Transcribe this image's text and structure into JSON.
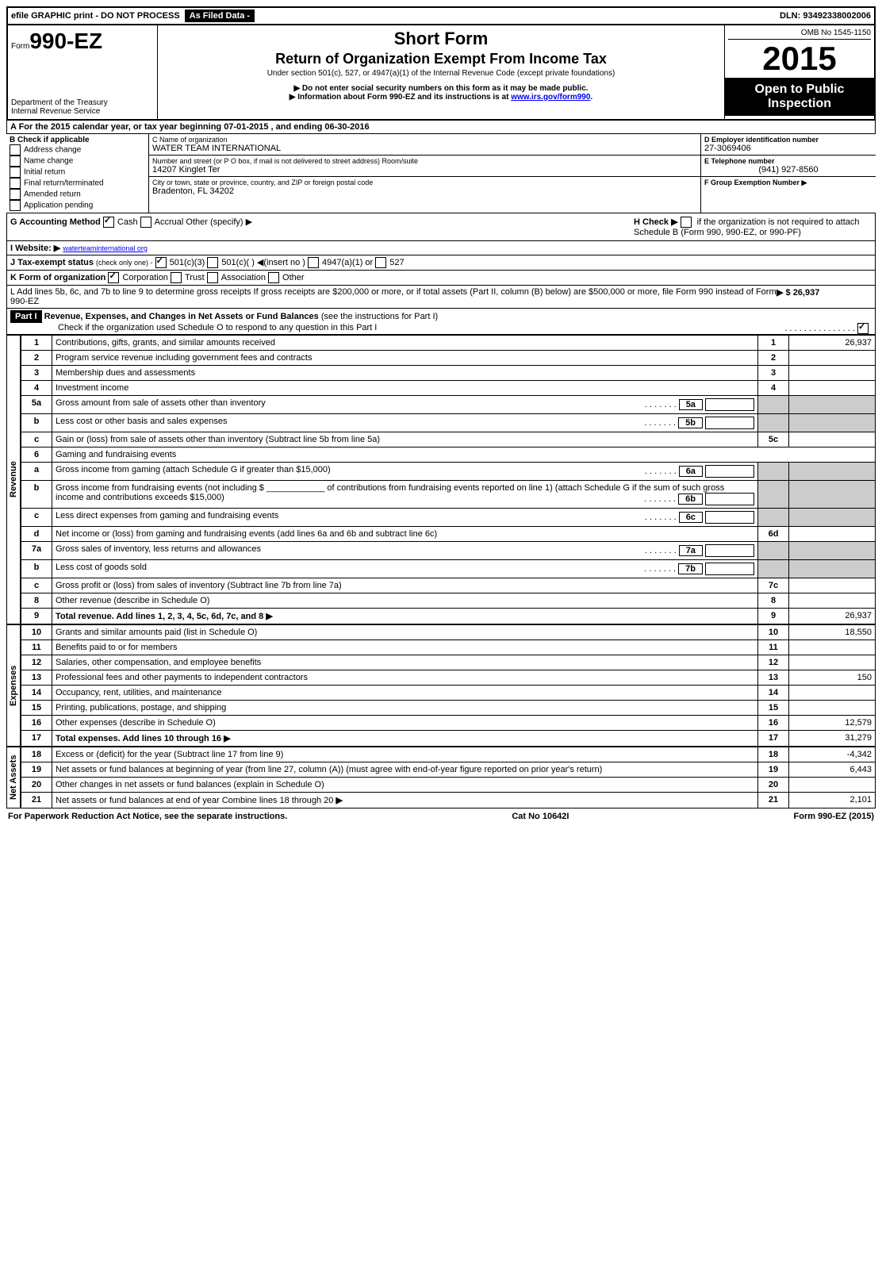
{
  "topbar": {
    "efile": "efile GRAPHIC print - DO NOT PROCESS",
    "asfiled": "As Filed Data -",
    "dln": "DLN: 93492338002006"
  },
  "header": {
    "form_prefix": "Form",
    "form_number": "990-EZ",
    "dept": "Department of the Treasury",
    "irs": "Internal Revenue Service",
    "short_form": "Short Form",
    "title": "Return of Organization Exempt From Income Tax",
    "subtitle": "Under section 501(c), 527, or 4947(a)(1) of the Internal Revenue Code (except private foundations)",
    "note1": "▶ Do not enter social security numbers on this form as it may be made public.",
    "note2_a": "▶ Information about Form 990-EZ and its instructions is at ",
    "note2_link": "www.irs.gov/form990",
    "omb": "OMB No 1545-1150",
    "year": "2015",
    "open_public1": "Open to Public",
    "open_public2": "Inspection"
  },
  "sectionA": {
    "a_line": "A  For the 2015 calendar year, or tax year beginning 07-01-2015            , and ending 06-30-2016",
    "b_label": "B  Check if applicable",
    "b_items": [
      "Address change",
      "Name change",
      "Initial return",
      "Final return/terminated",
      "Amended return",
      "Application pending"
    ],
    "c_name_label": "C Name of organization",
    "c_name": "WATER TEAM INTERNATIONAL",
    "c_street_label": "Number and street (or P O box, if mail is not delivered to street address) Room/suite",
    "c_street": "14207 Kinglet Ter",
    "c_city_label": "City or town, state or province, country, and ZIP or foreign postal code",
    "c_city": "Bradenton, FL 34202",
    "d_label": "D Employer identification number",
    "d_value": "27-3069406",
    "e_label": "E Telephone number",
    "e_value": "(941) 927-8560",
    "f_label": "F Group Exemption Number  ▶"
  },
  "sectionG": {
    "g_label": "G Accounting Method",
    "g_cash": "Cash",
    "g_accrual": "Accrual",
    "g_other": "Other (specify) ▶",
    "h_label": "H  Check ▶",
    "h_text": "if the organization is not required to attach Schedule B (Form 990, 990-EZ, or 990-PF)",
    "i_label": "I Website: ▶",
    "i_value": "waterteaminternational org",
    "j_label": "J Tax-exempt status",
    "j_text": "(check only one) -",
    "j_opts": [
      "501(c)(3)",
      "501(c)( ) ◀(insert no )",
      "4947(a)(1) or",
      "527"
    ],
    "k_label": "K Form of organization",
    "k_opts": [
      "Corporation",
      "Trust",
      "Association",
      "Other"
    ],
    "l_text": "L Add lines 5b, 6c, and 7b to line 9 to determine gross receipts  If gross receipts are $200,000 or more, or if total assets (Part II, column (B) below) are $500,000 or more, file Form 990 instead of Form 990-EZ",
    "l_value": "▶ $ 26,937"
  },
  "part1": {
    "label": "Part I",
    "title": "Revenue, Expenses, and Changes in Net Assets or Fund Balances",
    "subtitle": "(see the instructions for Part I)",
    "check_text": "Check if the organization used Schedule O to respond to any question in this Part I"
  },
  "sections": {
    "revenue": "Revenue",
    "expenses": "Expenses",
    "netassets": "Net Assets"
  },
  "lines": [
    {
      "n": "1",
      "desc": "Contributions, gifts, grants, and similar amounts received",
      "rn": "1",
      "amt": "26,937"
    },
    {
      "n": "2",
      "desc": "Program service revenue including government fees and contracts",
      "rn": "2",
      "amt": ""
    },
    {
      "n": "3",
      "desc": "Membership dues and assessments",
      "rn": "3",
      "amt": ""
    },
    {
      "n": "4",
      "desc": "Investment income",
      "rn": "4",
      "amt": ""
    },
    {
      "n": "5a",
      "desc": "Gross amount from sale of assets other than inventory",
      "sub": "5a"
    },
    {
      "n": "b",
      "desc": "Less  cost or other basis and sales expenses",
      "sub": "5b"
    },
    {
      "n": "c",
      "desc": "Gain or (loss) from sale of assets other than inventory (Subtract line 5b from line 5a)",
      "rn": "5c",
      "amt": ""
    },
    {
      "n": "6",
      "desc": "Gaming and fundraising events"
    },
    {
      "n": "a",
      "desc": "Gross income from gaming (attach Schedule G if greater than $15,000)",
      "sub": "6a"
    },
    {
      "n": "b",
      "desc": "Gross income from fundraising events (not including $ ____________ of contributions from fundraising events reported on line 1) (attach Schedule G if the sum of such gross income and contributions exceeds $15,000)",
      "sub": "6b"
    },
    {
      "n": "c",
      "desc": "Less  direct expenses from gaming and fundraising events",
      "sub": "6c"
    },
    {
      "n": "d",
      "desc": "Net income or (loss) from gaming and fundraising events (add lines 6a and 6b and subtract line 6c)",
      "rn": "6d",
      "amt": ""
    },
    {
      "n": "7a",
      "desc": "Gross sales of inventory, less returns and allowances",
      "sub": "7a"
    },
    {
      "n": "b",
      "desc": "Less  cost of goods sold",
      "sub": "7b"
    },
    {
      "n": "c",
      "desc": "Gross profit or (loss) from sales of inventory (Subtract line 7b from line 7a)",
      "rn": "7c",
      "amt": ""
    },
    {
      "n": "8",
      "desc": "Other revenue (describe in Schedule O)",
      "rn": "8",
      "amt": ""
    },
    {
      "n": "9",
      "desc": "Total revenue. Add lines 1, 2, 3, 4, 5c, 6d, 7c, and 8",
      "rn": "9",
      "amt": "26,937",
      "bold": true,
      "arrow": true
    }
  ],
  "expenses": [
    {
      "n": "10",
      "desc": "Grants and similar amounts paid (list in Schedule O)",
      "rn": "10",
      "amt": "18,550"
    },
    {
      "n": "11",
      "desc": "Benefits paid to or for members",
      "rn": "11",
      "amt": ""
    },
    {
      "n": "12",
      "desc": "Salaries, other compensation, and employee benefits",
      "rn": "12",
      "amt": ""
    },
    {
      "n": "13",
      "desc": "Professional fees and other payments to independent contractors",
      "rn": "13",
      "amt": "150"
    },
    {
      "n": "14",
      "desc": "Occupancy, rent, utilities, and maintenance",
      "rn": "14",
      "amt": ""
    },
    {
      "n": "15",
      "desc": "Printing, publications, postage, and shipping",
      "rn": "15",
      "amt": ""
    },
    {
      "n": "16",
      "desc": "Other expenses (describe in Schedule O)",
      "rn": "16",
      "amt": "12,579"
    },
    {
      "n": "17",
      "desc": "Total expenses. Add lines 10 through 16",
      "rn": "17",
      "amt": "31,279",
      "bold": true,
      "arrow": true
    }
  ],
  "netassets": [
    {
      "n": "18",
      "desc": "Excess or (deficit) for the year (Subtract line 17 from line 9)",
      "rn": "18",
      "amt": "-4,342"
    },
    {
      "n": "19",
      "desc": "Net assets or fund balances at beginning of year (from line 27, column (A)) (must agree with end-of-year figure reported on prior year's return)",
      "rn": "19",
      "amt": "6,443"
    },
    {
      "n": "20",
      "desc": "Other changes in net assets or fund balances (explain in Schedule O)",
      "rn": "20",
      "amt": ""
    },
    {
      "n": "21",
      "desc": "Net assets or fund balances at end of year  Combine lines 18 through 20",
      "rn": "21",
      "amt": "2,101",
      "arrow": true
    }
  ],
  "footer": {
    "left": "For Paperwork Reduction Act Notice, see the separate instructions.",
    "center": "Cat No 10642I",
    "right": "Form 990-EZ (2015)"
  }
}
